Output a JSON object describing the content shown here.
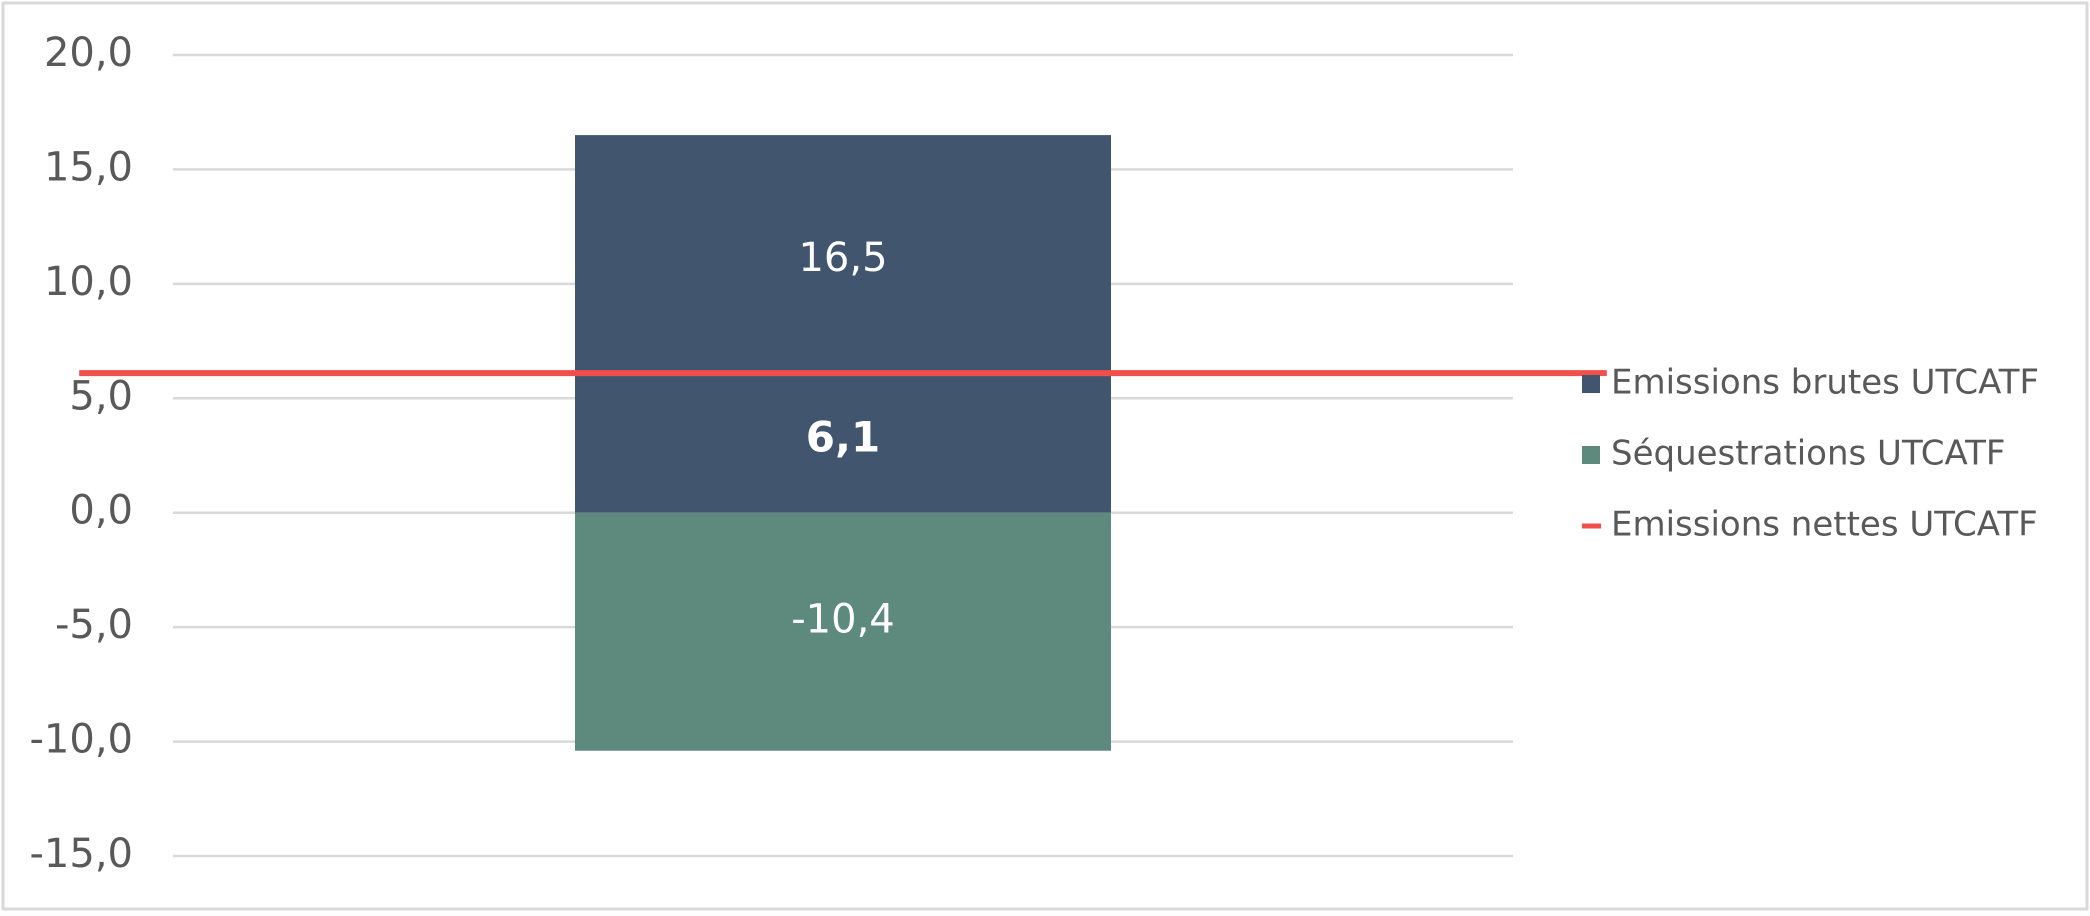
{
  "chart_data": {
    "type": "bar",
    "stacked": true,
    "categories": [
      null
    ],
    "series": [
      {
        "name": "Emissions brutes UTCATF",
        "color": "#42556f",
        "values": [
          16.5
        ],
        "value_labels": [
          "16,5"
        ]
      },
      {
        "name": "Séquestrations UTCATF",
        "color": "#5e8a7e",
        "values": [
          -10.4
        ],
        "value_labels": [
          "-10,4"
        ]
      },
      {
        "name": "Emissions nettes UTCATF",
        "type": "line",
        "color": "#f0504c",
        "values": [
          6.1
        ],
        "value_labels": [
          "6,1"
        ]
      }
    ],
    "ylim": [
      -15,
      20
    ],
    "yticks": [
      {
        "value": -15,
        "label": "-15,0"
      },
      {
        "value": -10,
        "label": "-10,0"
      },
      {
        "value": -5,
        "label": "-5,0"
      },
      {
        "value": 0,
        "label": "0,0"
      },
      {
        "value": 5,
        "label": "5,0"
      },
      {
        "value": 10,
        "label": "10,0"
      },
      {
        "value": 15,
        "label": "15,0"
      },
      {
        "value": 20,
        "label": "20,0"
      }
    ],
    "grid": true,
    "legend": "right"
  }
}
